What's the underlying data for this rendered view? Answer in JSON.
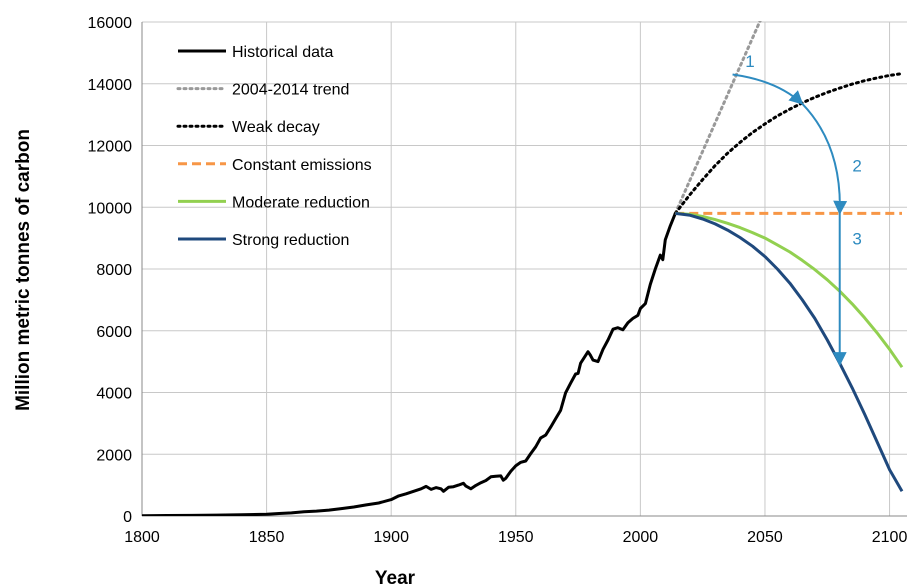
{
  "chart_data": {
    "type": "line",
    "xlabel": "Year",
    "ylabel": "Million metric tonnes of carbon",
    "xlim": [
      1800,
      2107
    ],
    "ylim": [
      0,
      16000
    ],
    "x_ticks": [
      1800,
      1850,
      1900,
      1950,
      2000,
      2050,
      2100
    ],
    "y_ticks": [
      0,
      2000,
      4000,
      6000,
      8000,
      10000,
      12000,
      14000,
      16000
    ],
    "grid": true,
    "legend_position": "top-left",
    "series": [
      {
        "name": "Historical data",
        "color": "#000000",
        "style": "solid",
        "x": [
          1800,
          1810,
          1820,
          1830,
          1840,
          1850,
          1855,
          1860,
          1865,
          1870,
          1875,
          1880,
          1885,
          1890,
          1895,
          1900,
          1903,
          1906,
          1909,
          1912,
          1914,
          1916,
          1918,
          1920,
          1921,
          1923,
          1925,
          1927,
          1929,
          1930,
          1932,
          1934,
          1936,
          1938,
          1940,
          1942,
          1944,
          1945,
          1946,
          1948,
          1950,
          1952,
          1954,
          1956,
          1958,
          1960,
          1962,
          1964,
          1966,
          1968,
          1970,
          1972,
          1974,
          1975,
          1976,
          1978,
          1979,
          1980,
          1981,
          1983,
          1985,
          1987,
          1989,
          1991,
          1993,
          1995,
          1997,
          1999,
          2000,
          2002,
          2004,
          2006,
          2008,
          2009,
          2010,
          2012,
          2014
        ],
        "y": [
          10,
          15,
          20,
          30,
          40,
          55,
          80,
          100,
          140,
          160,
          190,
          240,
          290,
          360,
          420,
          530,
          650,
          720,
          800,
          880,
          960,
          860,
          920,
          880,
          800,
          930,
          950,
          1000,
          1060,
          970,
          880,
          990,
          1080,
          1150,
          1270,
          1290,
          1300,
          1160,
          1220,
          1450,
          1630,
          1740,
          1780,
          2020,
          2240,
          2530,
          2620,
          2880,
          3150,
          3420,
          3990,
          4300,
          4600,
          4620,
          4950,
          5200,
          5320,
          5200,
          5050,
          5000,
          5400,
          5700,
          6050,
          6100,
          6030,
          6260,
          6400,
          6500,
          6720,
          6880,
          7500,
          8000,
          8450,
          8300,
          8950,
          9400,
          9800
        ]
      },
      {
        "name": "2004-2014 trend",
        "color": "#999999",
        "style": "dotted",
        "x": [
          2014,
          2050
        ],
        "y": [
          9800,
          16400
        ]
      },
      {
        "name": "Weak decay",
        "color": "#000000",
        "style": "dotted",
        "x": [
          2014,
          2020,
          2025,
          2030,
          2035,
          2040,
          2045,
          2050,
          2055,
          2060,
          2065,
          2070,
          2075,
          2080,
          2085,
          2090,
          2095,
          2100,
          2105
        ],
        "y": [
          9800,
          10420,
          10900,
          11350,
          11750,
          12100,
          12420,
          12700,
          12960,
          13180,
          13380,
          13560,
          13720,
          13860,
          13990,
          14100,
          14190,
          14270,
          14330
        ]
      },
      {
        "name": "Constant emissions",
        "color": "#F79646",
        "style": "dashed",
        "x": [
          2014,
          2105
        ],
        "y": [
          9800,
          9800
        ]
      },
      {
        "name": "Moderate reduction",
        "color": "#92D050",
        "style": "solid",
        "x": [
          2014,
          2020,
          2025,
          2030,
          2035,
          2040,
          2045,
          2050,
          2055,
          2060,
          2065,
          2070,
          2075,
          2080,
          2085,
          2090,
          2095,
          2100,
          2105
        ],
        "y": [
          9800,
          9770,
          9700,
          9600,
          9480,
          9340,
          9180,
          9000,
          8780,
          8550,
          8280,
          7980,
          7650,
          7280,
          6870,
          6420,
          5930,
          5400,
          4820
        ]
      },
      {
        "name": "Strong reduction",
        "color": "#1F497D",
        "style": "solid",
        "x": [
          2014,
          2020,
          2025,
          2030,
          2035,
          2040,
          2045,
          2050,
          2055,
          2060,
          2065,
          2070,
          2075,
          2080,
          2085,
          2090,
          2095,
          2100,
          2105
        ],
        "y": [
          9800,
          9740,
          9620,
          9460,
          9260,
          9020,
          8740,
          8400,
          8000,
          7540,
          7000,
          6400,
          5700,
          4950,
          4150,
          3300,
          2400,
          1500,
          800
        ]
      }
    ],
    "annotations": [
      {
        "label": "1",
        "color": "#2E8BC0",
        "x": 2044,
        "y": 14550
      },
      {
        "label": "2",
        "color": "#2E8BC0",
        "x": 2087,
        "y": 11150
      },
      {
        "label": "3",
        "color": "#2E8BC0",
        "x": 2087,
        "y": 8800
      }
    ],
    "arrows": [
      {
        "color": "#2E8BC0",
        "points": [
          [
            2037,
            14300
          ],
          [
            2055,
            14100
          ],
          [
            2065,
            13350
          ]
        ]
      },
      {
        "color": "#2E8BC0",
        "points": [
          [
            2065,
            13350
          ],
          [
            2081,
            12000
          ],
          [
            2080,
            9800
          ]
        ]
      },
      {
        "color": "#2E8BC0",
        "points": [
          [
            2080,
            9800
          ],
          [
            2080,
            4900
          ]
        ]
      }
    ]
  }
}
